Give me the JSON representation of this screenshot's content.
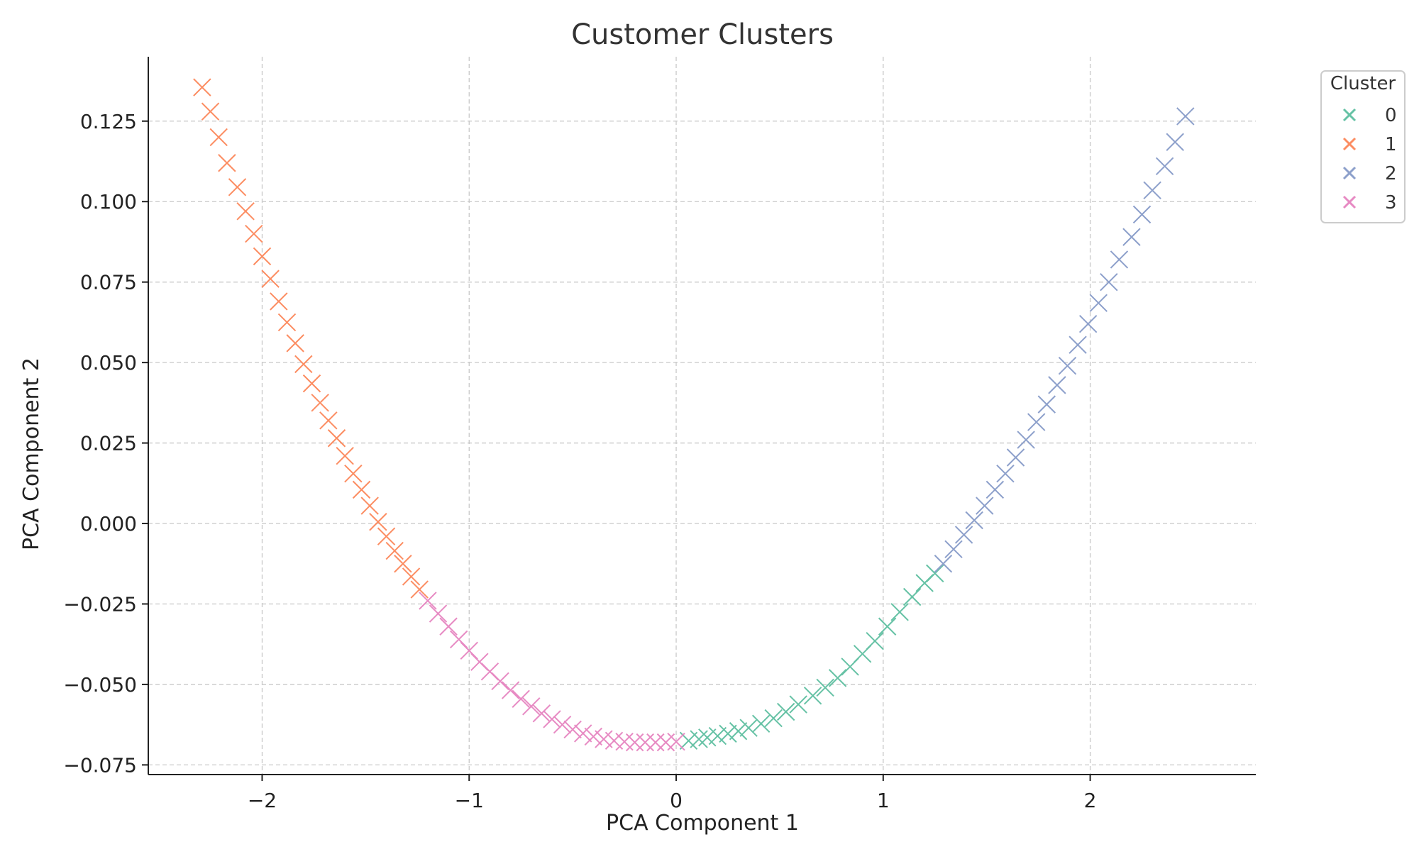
{
  "chart_data": {
    "type": "scatter",
    "title": "Customer Clusters",
    "xlabel": "PCA Component 1",
    "ylabel": "PCA Component 2",
    "xlim": [
      -2.55,
      2.8
    ],
    "ylim": [
      -0.078,
      0.145
    ],
    "x_ticks": [
      -2,
      -1,
      0,
      1,
      2
    ],
    "x_tick_labels": [
      "−2",
      "−1",
      "0",
      "1",
      "2"
    ],
    "y_ticks": [
      -0.075,
      -0.05,
      -0.025,
      0.0,
      0.025,
      0.05,
      0.075,
      0.1,
      0.125
    ],
    "y_tick_labels": [
      "−0.075",
      "−0.050",
      "−0.025",
      "0.000",
      "0.025",
      "0.050",
      "0.075",
      "0.100",
      "0.125"
    ],
    "grid": true,
    "marker": "x",
    "legend": {
      "title": "Cluster",
      "position": "outside-top-right"
    },
    "series": [
      {
        "name": "0",
        "color": "#66c2a5",
        "points": [
          [
            0.06,
            -0.0675
          ],
          [
            0.11,
            -0.067
          ],
          [
            0.15,
            -0.0665
          ],
          [
            0.2,
            -0.066
          ],
          [
            0.25,
            -0.0653
          ],
          [
            0.3,
            -0.0645
          ],
          [
            0.35,
            -0.0635
          ],
          [
            0.41,
            -0.0622
          ],
          [
            0.47,
            -0.0605
          ],
          [
            0.53,
            -0.0585
          ],
          [
            0.59,
            -0.0562
          ],
          [
            0.66,
            -0.0535
          ],
          [
            0.72,
            -0.051
          ],
          [
            0.78,
            -0.048
          ],
          [
            0.84,
            -0.0445
          ],
          [
            0.9,
            -0.0405
          ],
          [
            0.96,
            -0.0365
          ],
          [
            1.02,
            -0.032
          ],
          [
            1.08,
            -0.0275
          ],
          [
            1.14,
            -0.0228
          ],
          [
            1.2,
            -0.0185
          ],
          [
            1.25,
            -0.0155
          ]
        ]
      },
      {
        "name": "1",
        "color": "#fc8d62",
        "points": [
          [
            -2.29,
            0.1355
          ],
          [
            -2.25,
            0.128
          ],
          [
            -2.21,
            0.12
          ],
          [
            -2.17,
            0.112
          ],
          [
            -2.12,
            0.1045
          ],
          [
            -2.08,
            0.097
          ],
          [
            -2.04,
            0.09
          ],
          [
            -2.0,
            0.083
          ],
          [
            -1.96,
            0.076
          ],
          [
            -1.92,
            0.069
          ],
          [
            -1.88,
            0.0625
          ],
          [
            -1.84,
            0.056
          ],
          [
            -1.8,
            0.0495
          ],
          [
            -1.76,
            0.0435
          ],
          [
            -1.72,
            0.0375
          ],
          [
            -1.68,
            0.032
          ],
          [
            -1.64,
            0.0265
          ],
          [
            -1.6,
            0.021
          ],
          [
            -1.56,
            0.0155
          ],
          [
            -1.52,
            0.0105
          ],
          [
            -1.48,
            0.0055
          ],
          [
            -1.44,
            0.0005
          ],
          [
            -1.4,
            -0.004
          ],
          [
            -1.36,
            -0.0085
          ],
          [
            -1.32,
            -0.0125
          ],
          [
            -1.28,
            -0.0165
          ],
          [
            -1.24,
            -0.0205
          ]
        ]
      },
      {
        "name": "2",
        "color": "#8da0cb",
        "points": [
          [
            1.29,
            -0.0125
          ],
          [
            1.34,
            -0.008
          ],
          [
            1.39,
            -0.0035
          ],
          [
            1.44,
            0.001
          ],
          [
            1.49,
            0.0055
          ],
          [
            1.54,
            0.0105
          ],
          [
            1.59,
            0.0155
          ],
          [
            1.64,
            0.0205
          ],
          [
            1.69,
            0.026
          ],
          [
            1.74,
            0.0315
          ],
          [
            1.79,
            0.037
          ],
          [
            1.84,
            0.043
          ],
          [
            1.89,
            0.049
          ],
          [
            1.94,
            0.0555
          ],
          [
            1.99,
            0.062
          ],
          [
            2.04,
            0.0685
          ],
          [
            2.09,
            0.075
          ],
          [
            2.14,
            0.082
          ],
          [
            2.2,
            0.089
          ],
          [
            2.25,
            0.096
          ],
          [
            2.3,
            0.1035
          ],
          [
            2.36,
            0.111
          ],
          [
            2.41,
            0.1185
          ],
          [
            2.46,
            0.1265
          ]
        ]
      },
      {
        "name": "3",
        "color": "#e78ac3",
        "points": [
          [
            -1.2,
            -0.024
          ],
          [
            -1.15,
            -0.028
          ],
          [
            -1.1,
            -0.032
          ],
          [
            -1.05,
            -0.036
          ],
          [
            -1.0,
            -0.0395
          ],
          [
            -0.95,
            -0.043
          ],
          [
            -0.9,
            -0.046
          ],
          [
            -0.85,
            -0.049
          ],
          [
            -0.8,
            -0.0518
          ],
          [
            -0.75,
            -0.0545
          ],
          [
            -0.7,
            -0.0568
          ],
          [
            -0.65,
            -0.059
          ],
          [
            -0.6,
            -0.0608
          ],
          [
            -0.55,
            -0.0625
          ],
          [
            -0.5,
            -0.064
          ],
          [
            -0.45,
            -0.0652
          ],
          [
            -0.4,
            -0.0662
          ],
          [
            -0.35,
            -0.067
          ],
          [
            -0.3,
            -0.0675
          ],
          [
            -0.25,
            -0.0678
          ],
          [
            -0.2,
            -0.068
          ],
          [
            -0.15,
            -0.068
          ],
          [
            -0.1,
            -0.068
          ],
          [
            -0.05,
            -0.068
          ],
          [
            0.0,
            -0.0678
          ]
        ]
      }
    ]
  }
}
